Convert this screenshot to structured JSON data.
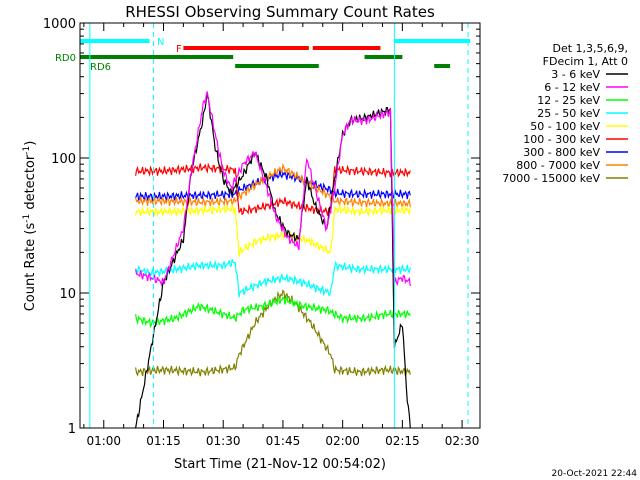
{
  "chart_data": {
    "type": "line",
    "title": "RHESSI Observing Summary Count Rates",
    "xlabel": "Start Time (21-Nov-12 00:54:02)",
    "ylabel": "Count Rate (s⁻¹ detector⁻¹)",
    "ylabel_main": "Count Rate (s",
    "ylabel_sup1": "-1",
    "ylabel_mid": " detector",
    "ylabel_sup2": "-1",
    "ylabel_end": ")",
    "yscale": "log",
    "ylim": [
      1,
      1000
    ],
    "xlim_minutes": [
      54.03,
      154.5
    ],
    "xticks": [
      {
        "m": 60,
        "label": "01:00"
      },
      {
        "m": 75,
        "label": "01:15"
      },
      {
        "m": 90,
        "label": "01:30"
      },
      {
        "m": 105,
        "label": "01:45"
      },
      {
        "m": 120,
        "label": "02:00"
      },
      {
        "m": 135,
        "label": "02:15"
      },
      {
        "m": 150,
        "label": "02:30"
      }
    ],
    "yticks": [
      {
        "v": 1,
        "label": "1"
      },
      {
        "v": 10,
        "label": "10"
      },
      {
        "v": 100,
        "label": "100"
      },
      {
        "v": 1000,
        "label": "1000"
      }
    ],
    "legend_header": [
      "Det 1,3,5,6,9,",
      "FDecim 1, Att 0"
    ],
    "legend_position": "right",
    "series": [
      {
        "name": "3 - 6 keV",
        "color": "#000000",
        "points": [
          [
            68,
            1
          ],
          [
            70,
            2
          ],
          [
            75,
            12
          ],
          [
            80,
            25
          ],
          [
            82,
            80
          ],
          [
            85,
            200
          ],
          [
            86,
            300
          ],
          [
            88,
            120
          ],
          [
            90,
            70
          ],
          [
            92,
            55
          ],
          [
            95,
            75
          ],
          [
            98,
            110
          ],
          [
            101,
            70
          ],
          [
            103,
            40
          ],
          [
            106,
            28
          ],
          [
            109,
            25
          ],
          [
            111,
            70
          ],
          [
            113,
            45
          ],
          [
            116,
            30
          ],
          [
            118,
            70
          ],
          [
            120,
            150
          ],
          [
            122,
            190
          ],
          [
            126,
            200
          ],
          [
            128,
            210
          ],
          [
            132,
            230
          ],
          [
            133,
            4
          ],
          [
            135,
            6
          ],
          [
            136,
            2
          ],
          [
            137,
            1
          ]
        ]
      },
      {
        "name": "6 - 12 keV",
        "color": "#ff00ff",
        "points": [
          [
            68,
            14
          ],
          [
            72,
            13
          ],
          [
            75,
            12
          ],
          [
            80,
            30
          ],
          [
            82,
            80
          ],
          [
            85,
            250
          ],
          [
            86,
            300
          ],
          [
            88,
            150
          ],
          [
            90,
            80
          ],
          [
            92,
            60
          ],
          [
            95,
            90
          ],
          [
            98,
            110
          ],
          [
            101,
            60
          ],
          [
            103,
            38
          ],
          [
            106,
            26
          ],
          [
            109,
            22
          ],
          [
            111,
            100
          ],
          [
            113,
            60
          ],
          [
            116,
            30
          ],
          [
            118,
            60
          ],
          [
            120,
            150
          ],
          [
            122,
            190
          ],
          [
            126,
            190
          ],
          [
            128,
            200
          ],
          [
            132,
            220
          ],
          [
            133,
            12
          ],
          [
            135,
            13
          ],
          [
            137,
            12
          ]
        ]
      },
      {
        "name": "12 - 25 keV",
        "color": "#00ff00",
        "points": [
          [
            68,
            6.5
          ],
          [
            72,
            6
          ],
          [
            78,
            6.5
          ],
          [
            84,
            8
          ],
          [
            90,
            7
          ],
          [
            93,
            6.5
          ],
          [
            95,
            7.5
          ],
          [
            100,
            8
          ],
          [
            105,
            9
          ],
          [
            110,
            8
          ],
          [
            116,
            7.5
          ],
          [
            120,
            6.5
          ],
          [
            126,
            6.5
          ],
          [
            131,
            7
          ],
          [
            137,
            7
          ]
        ]
      },
      {
        "name": "25 - 50 keV",
        "color": "#00ffff",
        "points": [
          [
            68,
            15
          ],
          [
            72,
            14
          ],
          [
            78,
            15
          ],
          [
            84,
            16
          ],
          [
            90,
            16
          ],
          [
            93,
            17
          ],
          [
            94,
            10
          ],
          [
            97,
            11
          ],
          [
            100,
            12
          ],
          [
            105,
            13
          ],
          [
            110,
            12
          ],
          [
            113,
            11
          ],
          [
            117,
            10
          ],
          [
            118,
            16
          ],
          [
            124,
            15
          ],
          [
            131,
            15
          ],
          [
            137,
            15
          ]
        ]
      },
      {
        "name": "50 - 100 keV",
        "color": "#ffff00",
        "points": [
          [
            68,
            40
          ],
          [
            75,
            40
          ],
          [
            85,
            41
          ],
          [
            93,
            42
          ],
          [
            94,
            20
          ],
          [
            98,
            24
          ],
          [
            102,
            26
          ],
          [
            105,
            27
          ],
          [
            108,
            26
          ],
          [
            112,
            24
          ],
          [
            117,
            20
          ],
          [
            118,
            42
          ],
          [
            124,
            40
          ],
          [
            131,
            41
          ],
          [
            137,
            41
          ]
        ]
      },
      {
        "name": "100 - 300 keV",
        "color": "#ff0000",
        "points": [
          [
            68,
            80
          ],
          [
            75,
            80
          ],
          [
            85,
            85
          ],
          [
            93,
            82
          ],
          [
            94,
            40
          ],
          [
            98,
            42
          ],
          [
            102,
            45
          ],
          [
            105,
            48
          ],
          [
            108,
            45
          ],
          [
            112,
            42
          ],
          [
            117,
            40
          ],
          [
            118,
            82
          ],
          [
            124,
            80
          ],
          [
            131,
            78
          ],
          [
            137,
            78
          ]
        ]
      },
      {
        "name": "300 - 800 keV",
        "color": "#0000ff",
        "points": [
          [
            68,
            52
          ],
          [
            75,
            52
          ],
          [
            85,
            53
          ],
          [
            93,
            54
          ],
          [
            94,
            58
          ],
          [
            98,
            65
          ],
          [
            102,
            72
          ],
          [
            105,
            76
          ],
          [
            108,
            72
          ],
          [
            112,
            65
          ],
          [
            117,
            58
          ],
          [
            118,
            55
          ],
          [
            124,
            54
          ],
          [
            131,
            54
          ],
          [
            137,
            54
          ]
        ]
      },
      {
        "name": "800 - 7000 keV",
        "color": "#ff8000",
        "points": [
          [
            68,
            48
          ],
          [
            75,
            48
          ],
          [
            85,
            47
          ],
          [
            93,
            48
          ],
          [
            94,
            52
          ],
          [
            98,
            63
          ],
          [
            102,
            75
          ],
          [
            105,
            84
          ],
          [
            108,
            75
          ],
          [
            112,
            63
          ],
          [
            117,
            52
          ],
          [
            118,
            48
          ],
          [
            124,
            47
          ],
          [
            131,
            46
          ],
          [
            137,
            46
          ]
        ]
      },
      {
        "name": "7000 - 15000 keV",
        "color": "#808000",
        "points": [
          [
            68,
            2.6
          ],
          [
            75,
            2.7
          ],
          [
            85,
            2.6
          ],
          [
            93,
            2.8
          ],
          [
            94,
            3.5
          ],
          [
            98,
            6
          ],
          [
            102,
            8.5
          ],
          [
            105,
            10
          ],
          [
            108,
            8.5
          ],
          [
            112,
            6
          ],
          [
            117,
            3.5
          ],
          [
            118,
            2.7
          ],
          [
            124,
            2.6
          ],
          [
            131,
            2.7
          ],
          [
            137,
            2.6
          ]
        ]
      }
    ],
    "state_bars": [
      {
        "name": "N",
        "color": "#00ffff",
        "label": "N",
        "segments": [
          [
            54.03,
            71.5
          ],
          [
            133,
            152
          ]
        ]
      },
      {
        "name": "F",
        "color": "#ff0000",
        "label": "F",
        "segments": [
          [
            80,
            111.5
          ],
          [
            112.5,
            129.5
          ]
        ]
      },
      {
        "name": "RD0",
        "color": "#008000",
        "label": "RD0",
        "segments": [
          [
            54.03,
            92.5
          ],
          [
            125.5,
            135
          ]
        ]
      },
      {
        "name": "RD6",
        "color": "#008000",
        "label": "RD6",
        "segments": [
          [
            93,
            114
          ],
          [
            143,
            147
          ]
        ]
      }
    ],
    "vertical_lines": [
      {
        "m": 56.5,
        "color": "#00ffff",
        "style": "solid"
      },
      {
        "m": 72.5,
        "color": "#00ffff",
        "style": "dashed"
      },
      {
        "m": 133,
        "color": "#00ffff",
        "style": "solid"
      },
      {
        "m": 151.5,
        "color": "#00ffff",
        "style": "dashed"
      }
    ],
    "grid": false
  },
  "footer_timestamp": "20-Oct-2021 22:44"
}
